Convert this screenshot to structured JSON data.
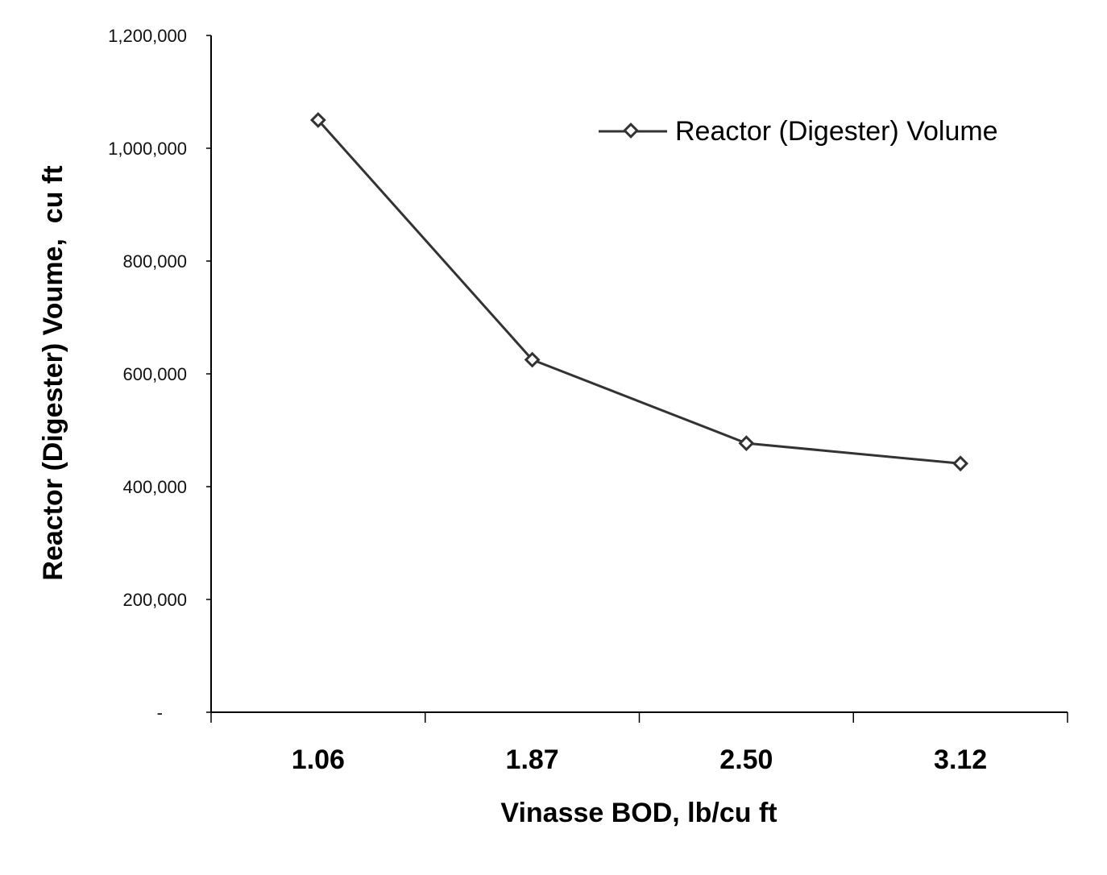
{
  "chart_data": {
    "type": "line",
    "title": "",
    "xlabel": "Vinasse BOD, lb/cu ft",
    "ylabel": "Reactor (Digester) Voume,  cu ft",
    "categories": [
      "1.06",
      "1.87",
      "2.50",
      "3.12"
    ],
    "series": [
      {
        "name": "Reactor (Digester) Volume",
        "values": [
          1050000,
          625000,
          477000,
          441000
        ],
        "color": "#333333",
        "marker": "diamond-open"
      }
    ],
    "ylim": [
      0,
      1200000
    ],
    "yticks": [
      0,
      200000,
      400000,
      600000,
      800000,
      1000000,
      1200000
    ],
    "ytick_labels": [
      "-",
      "200,000",
      "400,000",
      "600,000",
      "800,000",
      "1,000,000",
      "1,200,000"
    ],
    "grid": false,
    "legend_position": "upper-right"
  },
  "legend": {
    "label": "Reactor (Digester) Volume"
  },
  "axes": {
    "x_title": "Vinasse BOD, lb/cu ft",
    "y_title": "Reactor (Digester) Voume,  cu ft"
  }
}
